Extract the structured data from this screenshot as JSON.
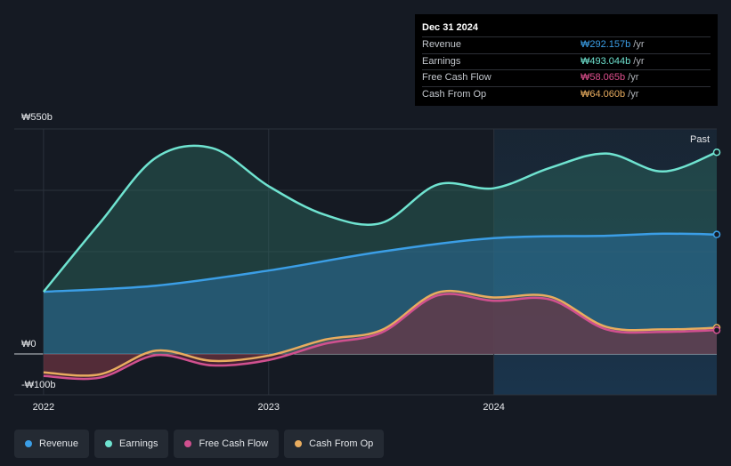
{
  "tooltip": {
    "date": "Dec 31 2024",
    "rows": [
      {
        "label": "Revenue",
        "value": "₩292.157b",
        "unit": "/yr",
        "color": "#3b9ee6"
      },
      {
        "label": "Earnings",
        "value": "₩493.044b",
        "unit": "/yr",
        "color": "#6fe3d0"
      },
      {
        "label": "Free Cash Flow",
        "value": "₩58.065b",
        "unit": "/yr",
        "color": "#e0508f"
      },
      {
        "label": "Cash From Op",
        "value": "₩64.060b",
        "unit": "/yr",
        "color": "#e8ac5f"
      }
    ]
  },
  "past_label": "Past",
  "legend": [
    {
      "label": "Revenue",
      "color": "#3b9ee6"
    },
    {
      "label": "Earnings",
      "color": "#6fe3d0"
    },
    {
      "label": "Free Cash Flow",
      "color": "#d0508f"
    },
    {
      "label": "Cash From Op",
      "color": "#e8ac5f"
    }
  ],
  "chart_data": {
    "type": "area",
    "title": "",
    "y_unit": "₩ billions",
    "ylim": [
      -100,
      550
    ],
    "y_tick_labels": [
      "₩550b",
      "₩0",
      "-₩100b"
    ],
    "y_ticks": [
      550,
      0,
      -100
    ],
    "x_tick_labels": [
      "2022",
      "2023",
      "2024"
    ],
    "x_ticks": [
      2022.0,
      2023.0,
      2024.0
    ],
    "xlim": [
      2021.87,
      2024.99
    ],
    "highlight_start": 2024.0,
    "series": [
      {
        "name": "Revenue",
        "color": "#3b9ee6",
        "x": [
          2022.0,
          2022.5,
          2023.0,
          2023.5,
          2024.0,
          2024.5,
          2024.75,
          2024.99
        ],
        "values": [
          152,
          167,
          204,
          250,
          283,
          289,
          294,
          292
        ]
      },
      {
        "name": "Earnings",
        "color": "#6fe3d0",
        "x": [
          2022.0,
          2022.25,
          2022.5,
          2022.75,
          2023.0,
          2023.25,
          2023.5,
          2023.75,
          2024.0,
          2024.25,
          2024.5,
          2024.75,
          2024.99
        ],
        "values": [
          152,
          320,
          480,
          503,
          410,
          340,
          320,
          414,
          405,
          455,
          490,
          446,
          493
        ]
      },
      {
        "name": "Free Cash Flow",
        "color": "#d0508f",
        "x": [
          2022.0,
          2022.25,
          2022.5,
          2022.75,
          2023.0,
          2023.25,
          2023.5,
          2023.75,
          2024.0,
          2024.25,
          2024.5,
          2024.75,
          2024.99
        ],
        "values": [
          -54,
          -58,
          -3,
          -28,
          -15,
          25,
          52,
          143,
          130,
          133,
          60,
          54,
          58
        ]
      },
      {
        "name": "Cash From Op",
        "color": "#e8ac5f",
        "x": [
          2022.0,
          2022.25,
          2022.5,
          2022.75,
          2023.0,
          2023.25,
          2023.5,
          2023.75,
          2024.0,
          2024.25,
          2024.5,
          2024.75,
          2024.99
        ],
        "values": [
          -45,
          -50,
          8,
          -17,
          -4,
          35,
          58,
          150,
          138,
          140,
          66,
          60,
          64
        ]
      }
    ]
  }
}
